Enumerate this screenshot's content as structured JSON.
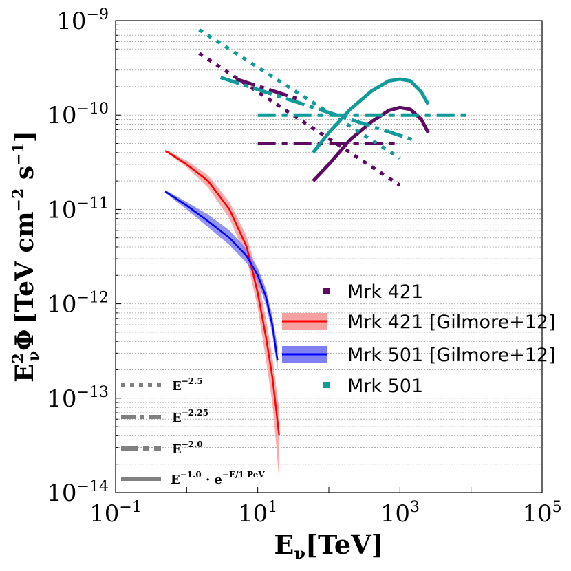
{
  "chart_data": {
    "type": "line",
    "xscale": "log",
    "yscale": "log",
    "xlim": [
      0.1,
      100000
    ],
    "ylim": [
      1e-14,
      1e-09
    ],
    "grid": "y-minor-dotted",
    "xlabel": {
      "base": "E",
      "sub": "ν",
      "unit": "[TeV]"
    },
    "ylabel": {
      "base": "E",
      "sup": "2",
      "sub": "ν",
      "sym": "Φ",
      "unit": "[TeV cm",
      "exp1": "−2",
      "mid": " s",
      "exp2": "−1",
      "close": "]"
    },
    "x_ticks": [
      {
        "value": 0.1,
        "base": "10",
        "exp": "−1"
      },
      {
        "value": 10,
        "base": "10",
        "exp": "1"
      },
      {
        "value": 1000,
        "base": "10",
        "exp": "3"
      },
      {
        "value": 100000,
        "base": "10",
        "exp": "5"
      }
    ],
    "y_ticks": [
      {
        "value": 1e-09,
        "base": "10",
        "exp": "−9"
      },
      {
        "value": 1e-10,
        "base": "10",
        "exp": "−10"
      },
      {
        "value": 1e-11,
        "base": "10",
        "exp": "−11"
      },
      {
        "value": 1e-12,
        "base": "10",
        "exp": "−12"
      },
      {
        "value": 1e-13,
        "base": "10",
        "exp": "−13"
      },
      {
        "value": 1e-14,
        "base": "10",
        "exp": "−14"
      }
    ],
    "colors": {
      "mrk421": "#5e0a63",
      "mrk501": "#119a9a",
      "mrk421_gilmore": "#ff0000",
      "mrk501_gilmore": "#0000ff",
      "mrk421_band": "#f6a0a0",
      "mrk501_band": "#8080f2",
      "style": "#808080"
    },
    "series": [
      {
        "name": "Mrk 421 E^-2.5",
        "source": "Mrk 421",
        "style": "dotted",
        "x": [
          1.5,
          1000
        ],
        "y": [
          4.5e-10,
          1.8e-11
        ]
      },
      {
        "name": "Mrk 421 E^-2.25",
        "source": "Mrk 421",
        "style": "dashdot",
        "x": [
          5,
          35
        ],
        "y": [
          2.4e-10,
          1.5e-10
        ]
      },
      {
        "name": "Mrk 421 E^-2.0",
        "source": "Mrk 421",
        "style": "dashed",
        "x": [
          10,
          1000
        ],
        "y": [
          5e-11,
          5e-11
        ]
      },
      {
        "name": "Mrk 421 E^-1.0 cutoff",
        "source": "Mrk 421",
        "style": "solid",
        "x": [
          60,
          100,
          200,
          400,
          700,
          1000,
          1400,
          2000,
          2500
        ],
        "y": [
          2e-11,
          3e-11,
          5.5e-11,
          8.5e-11,
          1.12e-10,
          1.2e-10,
          1.15e-10,
          9e-11,
          6.5e-11
        ]
      },
      {
        "name": "Mrk 501 E^-2.5",
        "source": "Mrk 501",
        "style": "dotted",
        "x": [
          1.5,
          1000
        ],
        "y": [
          8e-10,
          3.5e-11
        ]
      },
      {
        "name": "Mrk 501 E^-2.25",
        "source": "Mrk 501",
        "style": "dashdot",
        "x": [
          3,
          1500
        ],
        "y": [
          2.5e-10,
          5.5e-11
        ]
      },
      {
        "name": "Mrk 501 E^-2.0",
        "source": "Mrk 501",
        "style": "dashed",
        "x": [
          10,
          10000
        ],
        "y": [
          1e-10,
          1e-10
        ]
      },
      {
        "name": "Mrk 501 E^-1.0 cutoff",
        "source": "Mrk 501",
        "style": "solid",
        "x": [
          60,
          100,
          200,
          400,
          700,
          1000,
          1400,
          2000,
          2500
        ],
        "y": [
          4e-11,
          6.5e-11,
          1.15e-10,
          1.8e-10,
          2.3e-10,
          2.4e-10,
          2.3e-10,
          1.75e-10,
          1.3e-10
        ]
      },
      {
        "name": "Mrk 421 [Gilmore+12]",
        "source": "Mrk 421 [Gilmore+12]",
        "style": "solid-thin",
        "x": [
          0.5,
          1,
          2,
          4,
          7,
          10,
          13,
          16,
          18,
          20
        ],
        "y": [
          4.2e-11,
          3e-11,
          2e-11,
          1e-11,
          4e-12,
          1.3e-12,
          4.5e-13,
          1.7e-13,
          8e-14,
          4e-14
        ],
        "band_upper": [
          4.3e-11,
          3.3e-11,
          2.3e-11,
          1.2e-11,
          5.2e-12,
          2e-12,
          7e-13,
          2.8e-13,
          1.4e-13,
          7.5e-14
        ],
        "band_lower": [
          4.1e-11,
          2.8e-11,
          1.7e-11,
          8e-12,
          3e-12,
          9e-13,
          2.6e-13,
          9e-14,
          3.5e-14,
          1.3e-14
        ]
      },
      {
        "name": "Mrk 501 [Gilmore+12]",
        "source": "Mrk 501 [Gilmore+12]",
        "style": "solid-thin",
        "x": [
          0.5,
          1,
          2,
          4,
          7,
          10,
          13,
          16,
          19
        ],
        "y": [
          1.55e-11,
          1.1e-11,
          7.5e-12,
          5e-12,
          3.2e-12,
          2e-12,
          1.2e-12,
          6e-13,
          2.5e-13
        ],
        "band_upper": [
          1.6e-11,
          1.2e-11,
          8.8e-12,
          6e-12,
          3.8e-12,
          2.4e-12,
          1.45e-12,
          7.5e-13,
          3.5e-13
        ],
        "band_lower": [
          1.5e-11,
          1e-11,
          6.5e-12,
          4.2e-12,
          2.7e-12,
          1.7e-12,
          1e-12,
          4.8e-13,
          2e-13
        ]
      }
    ],
    "legend": [
      {
        "label": "Mrk 421",
        "marker": "square",
        "color": "#5e0a63"
      },
      {
        "label": "Mrk 421 [Gilmore+12]",
        "marker": "band-line",
        "color": "#ff0000",
        "band": "#f6a0a0"
      },
      {
        "label": "Mrk 501 [Gilmore+12]",
        "marker": "band-line",
        "color": "#0000ff",
        "band": "#8080f2"
      },
      {
        "label": "Mrk 501",
        "marker": "square",
        "color": "#119a9a"
      }
    ],
    "style_legend": [
      {
        "style": "dotted",
        "base": "E",
        "sup": "−2.5"
      },
      {
        "style": "dashdot",
        "base": "E",
        "sup": "−2.25"
      },
      {
        "style": "dashed",
        "base": "E",
        "sup": "−2.0"
      },
      {
        "style": "solid",
        "base": "E",
        "sup": "−1.0",
        "mid": " · e",
        "sup2": "−E/1 PeV"
      }
    ]
  }
}
